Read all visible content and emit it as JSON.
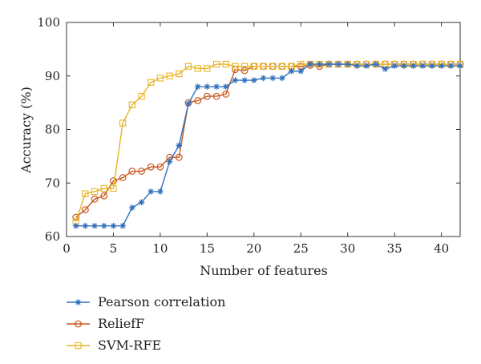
{
  "chart_data": {
    "type": "line",
    "xlabel": "Number of features",
    "ylabel": "Accuracy (%)",
    "xlim": [
      0,
      42
    ],
    "ylim": [
      60,
      100
    ],
    "xticks": [
      0,
      5,
      10,
      15,
      20,
      25,
      30,
      35,
      40
    ],
    "yticks": [
      60,
      70,
      80,
      90,
      100
    ],
    "grid": false,
    "legend_position": "below",
    "x": [
      1,
      2,
      3,
      4,
      5,
      6,
      7,
      8,
      9,
      10,
      11,
      12,
      13,
      14,
      15,
      16,
      17,
      18,
      19,
      20,
      21,
      22,
      23,
      24,
      25,
      26,
      27,
      28,
      29,
      30,
      31,
      32,
      33,
      34,
      35,
      36,
      37,
      38,
      39,
      40,
      41,
      42
    ],
    "series": [
      {
        "name": "Pearson correlation",
        "color": "#2E6FBF",
        "marker": "asterisk",
        "values": [
          62.0,
          62.0,
          62.0,
          62.0,
          62.0,
          62.0,
          65.4,
          66.4,
          68.4,
          68.4,
          74.0,
          77.0,
          84.8,
          88.0,
          88.0,
          88.0,
          88.0,
          89.2,
          89.2,
          89.2,
          89.6,
          89.6,
          89.6,
          90.9,
          90.9,
          92.2,
          92.2,
          92.2,
          92.2,
          92.2,
          91.9,
          91.9,
          92.2,
          91.3,
          91.9,
          91.9,
          91.9,
          91.9,
          91.9,
          91.9,
          91.9,
          91.9
        ]
      },
      {
        "name": "ReliefF",
        "color": "#C9561F",
        "marker": "circle",
        "values": [
          63.6,
          65.0,
          67.0,
          67.6,
          70.4,
          71.0,
          72.2,
          72.2,
          73.0,
          73.0,
          74.8,
          74.8,
          85.0,
          85.4,
          86.2,
          86.2,
          86.6,
          91.2,
          91.0,
          91.8,
          91.8,
          91.8,
          91.8,
          91.8,
          91.8,
          92.0,
          91.8,
          92.2,
          92.2,
          92.2,
          92.2,
          92.2,
          92.2,
          92.2,
          92.2,
          92.2,
          92.2,
          92.2,
          92.2,
          92.2,
          92.2,
          92.2
        ]
      },
      {
        "name": "SVM-RFE",
        "color": "#E8B422",
        "marker": "square",
        "values": [
          62.8,
          68.0,
          68.4,
          69.0,
          69.0,
          81.2,
          84.6,
          86.2,
          88.8,
          89.6,
          90.0,
          90.4,
          91.8,
          91.4,
          91.4,
          92.2,
          92.2,
          91.8,
          91.8,
          91.8,
          91.8,
          91.8,
          91.8,
          91.8,
          92.2,
          92.2,
          92.2,
          92.2,
          92.2,
          92.2,
          92.2,
          92.2,
          92.2,
          92.2,
          92.2,
          92.2,
          92.2,
          92.2,
          92.2,
          92.2,
          92.2,
          92.2
        ]
      }
    ]
  }
}
